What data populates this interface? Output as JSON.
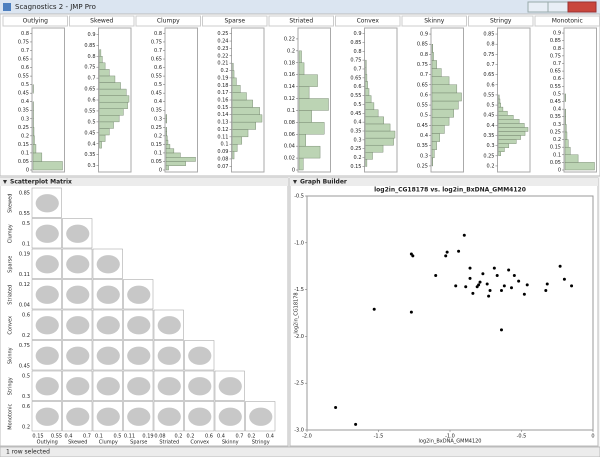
{
  "window_title": "Scagnostics 2 - JMP Pro",
  "status": "1 row selected",
  "chart_data": [
    {
      "type": "histogram",
      "title": "Outlying",
      "bins": [
        0,
        0.05,
        0.1,
        0.15,
        0.2,
        0.25,
        0.3,
        0.35,
        0.4,
        0.45,
        0.5
      ],
      "counts": [
        60,
        18,
        6,
        3,
        2,
        1,
        1,
        1,
        0,
        1
      ],
      "ylim": [
        0,
        0.82
      ],
      "yticks": [
        0,
        0.05,
        0.1,
        0.15,
        0.2,
        0.25,
        0.3,
        0.35,
        0.4,
        0.45,
        0.5,
        0.55,
        0.6,
        0.65,
        0.7,
        0.75,
        0.8
      ],
      "color": "#bcd4b4"
    },
    {
      "type": "histogram",
      "title": "Skewed",
      "bins": [
        0.38,
        0.41,
        0.44,
        0.47,
        0.5,
        0.53,
        0.56,
        0.59,
        0.62,
        0.65,
        0.68,
        0.71,
        0.74,
        0.77,
        0.8,
        0.83
      ],
      "counts": [
        3,
        8,
        14,
        20,
        28,
        34,
        40,
        42,
        38,
        30,
        22,
        14,
        8,
        4,
        2
      ],
      "ylim": [
        0.28,
        0.92
      ],
      "yticks": [
        0.3,
        0.35,
        0.4,
        0.45,
        0.5,
        0.55,
        0.6,
        0.65,
        0.7,
        0.75,
        0.8,
        0.85,
        0.9
      ],
      "color": "#bcd4b4"
    },
    {
      "type": "histogram",
      "title": "Clumpy",
      "bins": [
        0,
        0.025,
        0.05,
        0.075,
        0.1,
        0.125,
        0.15,
        0.175,
        0.2,
        0.225,
        0.25,
        0.275,
        0.3,
        0.325
      ],
      "counts": [
        4,
        30,
        45,
        22,
        12,
        6,
        3,
        2,
        1,
        1,
        0,
        1,
        1
      ],
      "ylim": [
        0,
        0.82
      ],
      "yticks": [
        0,
        0.05,
        0.1,
        0.15,
        0.2,
        0.25,
        0.3,
        0.35,
        0.4,
        0.45,
        0.5,
        0.55,
        0.6,
        0.65,
        0.7,
        0.75,
        0.8
      ],
      "color": "#bcd4b4"
    },
    {
      "type": "histogram",
      "title": "Sparse",
      "bins": [
        0.08,
        0.09,
        0.1,
        0.11,
        0.12,
        0.13,
        0.14,
        0.15,
        0.16,
        0.17,
        0.18,
        0.19,
        0.2,
        0.21
      ],
      "counts": [
        2,
        6,
        12,
        20,
        30,
        38,
        35,
        26,
        18,
        10,
        5,
        2,
        1
      ],
      "ylim": [
        0.065,
        0.255
      ],
      "yticks": [
        0.07,
        0.08,
        0.09,
        0.1,
        0.11,
        0.12,
        0.13,
        0.14,
        0.15,
        0.16,
        0.17,
        0.18,
        0.19,
        0.2,
        0.21,
        0.22,
        0.23,
        0.24,
        0.25
      ],
      "color": "#bcd4b4"
    },
    {
      "type": "histogram",
      "title": "Striated",
      "bins": [
        0,
        0.02,
        0.04,
        0.06,
        0.08,
        0.1,
        0.12,
        0.14,
        0.16,
        0.18,
        0.2
      ],
      "counts": [
        5,
        25,
        8,
        30,
        15,
        35,
        12,
        22,
        6,
        3
      ],
      "ylim": [
        0,
        0.235
      ],
      "yticks": [
        0,
        0.02,
        0.04,
        0.06,
        0.08,
        0.1,
        0.12,
        0.14,
        0.16,
        0.18,
        0.2,
        0.22
      ],
      "color": "#bcd4b4"
    },
    {
      "type": "histogram",
      "title": "Convex",
      "bins": [
        0.15,
        0.19,
        0.23,
        0.27,
        0.31,
        0.35,
        0.39,
        0.43,
        0.47,
        0.51,
        0.55,
        0.59,
        0.63,
        0.67,
        0.71,
        0.75
      ],
      "counts": [
        2,
        10,
        25,
        40,
        42,
        35,
        26,
        18,
        12,
        8,
        5,
        3,
        2,
        1,
        1
      ],
      "ylim": [
        0.13,
        0.92
      ],
      "yticks": [
        0.15,
        0.2,
        0.25,
        0.3,
        0.35,
        0.4,
        0.45,
        0.5,
        0.55,
        0.6,
        0.65,
        0.7,
        0.75,
        0.8,
        0.85,
        0.9
      ],
      "color": "#bcd4b4"
    },
    {
      "type": "histogram",
      "title": "Skinny",
      "bins": [
        0.25,
        0.29,
        0.33,
        0.37,
        0.41,
        0.45,
        0.49,
        0.53,
        0.57,
        0.61,
        0.65,
        0.69,
        0.73,
        0.77,
        0.81,
        0.85
      ],
      "counts": [
        1,
        3,
        6,
        10,
        16,
        22,
        28,
        34,
        38,
        32,
        22,
        12,
        6,
        2,
        1
      ],
      "ylim": [
        0.23,
        0.92
      ],
      "yticks": [
        0.25,
        0.3,
        0.35,
        0.4,
        0.45,
        0.5,
        0.55,
        0.6,
        0.65,
        0.7,
        0.75,
        0.8,
        0.85,
        0.9
      ],
      "color": "#bcd4b4"
    },
    {
      "type": "histogram",
      "title": "Stringy",
      "bins": [
        0.25,
        0.27,
        0.29,
        0.31,
        0.33,
        0.35,
        0.37,
        0.39,
        0.41,
        0.43,
        0.45,
        0.47,
        0.49,
        0.51,
        0.53,
        0.55
      ],
      "counts": [
        3,
        8,
        14,
        24,
        30,
        36,
        40,
        35,
        28,
        20,
        12,
        6,
        3,
        2,
        1
      ],
      "ylim": [
        0.18,
        0.87
      ],
      "yticks": [
        0.2,
        0.25,
        0.3,
        0.35,
        0.4,
        0.45,
        0.5,
        0.55,
        0.6,
        0.65,
        0.7,
        0.75,
        0.8,
        0.85
      ],
      "color": "#bcd4b4"
    },
    {
      "type": "histogram",
      "title": "Monotonic",
      "bins": [
        0,
        0.05,
        0.1,
        0.15,
        0.2,
        0.25,
        0.3,
        0.35,
        0.4,
        0.45,
        0.5
      ],
      "counts": [
        45,
        20,
        8,
        5,
        3,
        2,
        1,
        1,
        0,
        1
      ],
      "ylim": [
        0,
        0.92
      ],
      "yticks": [
        0,
        0.05,
        0.1,
        0.15,
        0.2,
        0.25,
        0.3,
        0.35,
        0.4,
        0.45,
        0.5,
        0.55,
        0.6,
        0.65,
        0.7,
        0.75,
        0.8,
        0.85,
        0.9
      ],
      "color": "#bcd4b4"
    },
    {
      "type": "scatter",
      "panel_title": "Graph Builder",
      "title": "log2in_CG18178 vs. log2in_BxDNA_GMM4120",
      "xlabel": "log2in_BxDNA_GMM4120",
      "ylabel": "log2in_CG18178",
      "color": "#000000",
      "x": [
        -1.8,
        -1.66,
        -1.53,
        -1.27,
        -1.27,
        -1.26,
        -1.03,
        -1.02,
        -0.94,
        -0.9,
        -1.1,
        -0.86,
        -0.86,
        -0.96,
        -0.81,
        -0.8,
        -0.77,
        -0.74,
        -0.72,
        -0.69,
        -0.67,
        -0.64,
        -0.62,
        -0.59,
        -0.57,
        -0.55,
        -0.52,
        -0.48,
        -0.46,
        -0.33,
        -0.32,
        -0.23,
        -0.2,
        -0.15,
        -0.64,
        -0.79,
        -0.73,
        -0.84,
        -0.89
      ],
      "y": [
        -2.76,
        -2.94,
        -1.71,
        -1.74,
        -1.12,
        -1.14,
        -1.14,
        -1.1,
        -1.09,
        -0.92,
        -1.35,
        -1.27,
        -1.38,
        -1.46,
        -1.47,
        -1.45,
        -1.33,
        -1.44,
        -1.51,
        -1.27,
        -1.35,
        -1.51,
        -1.46,
        -1.29,
        -1.48,
        -1.35,
        -1.41,
        -1.55,
        -1.45,
        -1.51,
        -1.44,
        -1.25,
        -1.39,
        -1.46,
        -1.93,
        -1.42,
        -1.57,
        -1.54,
        -1.47
      ],
      "xlim": [
        -2,
        0
      ],
      "ylim": [
        -3,
        -0.5
      ],
      "xticks": [
        {
          "value": -2,
          "label": "-2.0"
        },
        {
          "value": -1.5,
          "label": "-1.5"
        },
        {
          "value": -1,
          "label": "-1.0"
        },
        {
          "value": -0.5,
          "label": "-0.5"
        },
        0
      ],
      "yticks": [
        {
          "value": -3,
          "label": "-3.0"
        },
        {
          "value": -2.5,
          "label": "-2.5"
        },
        {
          "value": -2,
          "label": "-2.0"
        },
        {
          "value": -1.5,
          "label": "-1.5"
        },
        {
          "value": -1,
          "label": "-1.0"
        },
        {
          "value": -0.5,
          "label": "-0.5"
        }
      ]
    }
  ],
  "scatterplot_matrix": {
    "title": "Scatterplot Matrix",
    "rows": [
      {
        "label": "Skewed",
        "ticks": [
          "0.85",
          "0.55"
        ]
      },
      {
        "label": "Clumpy",
        "ticks": [
          "0.5",
          "0.1"
        ]
      },
      {
        "label": "Sparse",
        "ticks": [
          "0.19",
          "0.11"
        ]
      },
      {
        "label": "Striated",
        "ticks": [
          "0.12",
          "0.04"
        ]
      },
      {
        "label": "Convex",
        "ticks": [
          "0.6",
          "0.2"
        ]
      },
      {
        "label": "Skinny",
        "ticks": [
          "0.75",
          "0.45"
        ]
      },
      {
        "label": "Stringy",
        "ticks": [
          "0.5",
          "0.3"
        ]
      },
      {
        "label": "Monotonic",
        "ticks": [
          "0.6",
          "0.2"
        ]
      }
    ],
    "columns": [
      {
        "label": "Outlying",
        "ticks": [
          "0.15",
          "0.55"
        ]
      },
      {
        "label": "Skewed",
        "ticks": [
          "0.4",
          "0.7"
        ]
      },
      {
        "label": "Clumpy",
        "ticks": [
          "0.1",
          "0.5"
        ]
      },
      {
        "label": "Sparse",
        "ticks": [
          "0.11",
          "0.19"
        ]
      },
      {
        "label": "Striated",
        "ticks": [
          "0.08",
          "0.2"
        ]
      },
      {
        "label": "Convex",
        "ticks": [
          "0.2",
          "0.6"
        ]
      },
      {
        "label": "Skinny",
        "ticks": [
          "0.4",
          "0.7"
        ]
      },
      {
        "label": "Stringy",
        "ticks": [
          "0.2",
          "0.4"
        ]
      }
    ]
  }
}
